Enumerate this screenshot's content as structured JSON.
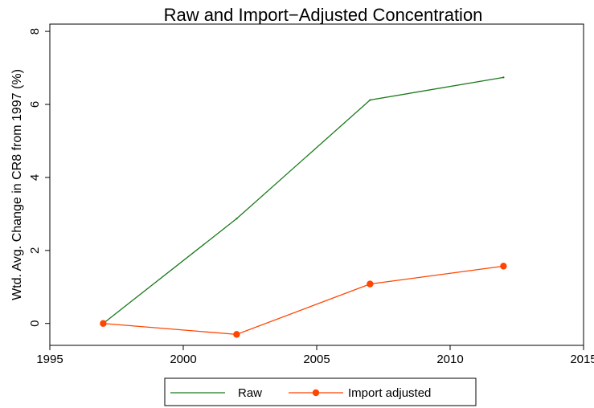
{
  "chart_data": {
    "type": "line",
    "title": "Raw and Import−Adjusted Concentration",
    "xlabel": "",
    "ylabel": "Wtd. Avg. Change in CR8 from 1997 (%)",
    "xlim": [
      1995,
      2015
    ],
    "ylim": [
      -0.6,
      8.2
    ],
    "xticks": [
      1995,
      2000,
      2005,
      2010,
      2015
    ],
    "yticks": [
      0,
      2,
      4,
      6,
      8
    ],
    "grid": false,
    "legend_position": "bottom",
    "series": [
      {
        "name": "Raw",
        "color": "#1a7a1a",
        "marker": "none",
        "x": [
          1997,
          2002,
          2007,
          2012
        ],
        "y": [
          0,
          2.87,
          6.12,
          6.74
        ]
      },
      {
        "name": "Import adjusted",
        "color": "#ff4500",
        "marker": "circle",
        "x": [
          1997,
          2002,
          2007,
          2012
        ],
        "y": [
          0,
          -0.3,
          1.08,
          1.57
        ]
      }
    ]
  }
}
